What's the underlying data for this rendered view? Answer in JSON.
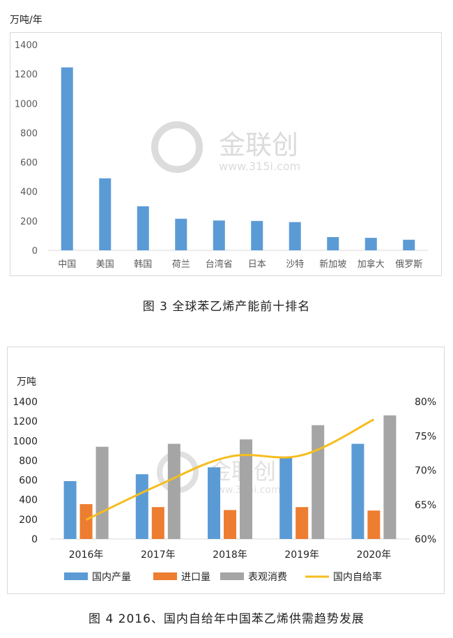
{
  "chart_data": [
    {
      "type": "bar",
      "unit_label": "万吨/年",
      "categories": [
        "中国",
        "美国",
        "韩国",
        "荷兰",
        "台湾省",
        "日本",
        "沙特",
        "新加坡",
        "加拿大",
        "俄罗斯"
      ],
      "values": [
        1245,
        490,
        300,
        215,
        203,
        200,
        192,
        90,
        85,
        72
      ],
      "ylim": [
        0,
        1400
      ],
      "yticks": [
        0,
        200,
        400,
        600,
        800,
        1000,
        1200,
        1400
      ],
      "color": "#5b9bd5",
      "grid": false,
      "caption": "图 3  全球苯乙烯产能前十排名"
    },
    {
      "type": "bar+line",
      "unit_label": "万吨",
      "categories": [
        "2016年",
        "2017年",
        "2018年",
        "2019年",
        "2020年"
      ],
      "series": [
        {
          "name": "国内产量",
          "type": "bar",
          "color": "#5b9bd5",
          "values": [
            590,
            660,
            730,
            840,
            970
          ]
        },
        {
          "name": "进口量",
          "type": "bar",
          "color": "#ed7d31",
          "values": [
            355,
            325,
            295,
            325,
            290
          ]
        },
        {
          "name": "表观消费",
          "type": "bar",
          "color": "#a5a5a5",
          "values": [
            940,
            970,
            1015,
            1160,
            1260
          ]
        },
        {
          "name": "国内自给率",
          "type": "line",
          "axis": "right",
          "color": "#f5bd1f",
          "values": [
            62.8,
            67.8,
            72.0,
            72.2,
            77.4
          ]
        }
      ],
      "ylim": [
        0,
        1400
      ],
      "yticks": [
        0,
        200,
        400,
        600,
        800,
        1000,
        1200,
        1400
      ],
      "y2lim": [
        60,
        80
      ],
      "y2ticks": [
        "60%",
        "65%",
        "70%",
        "75%",
        "80%"
      ],
      "legend_position": "bottom",
      "caption": "图 4  2016、国内自给年中国苯乙烯供需趋势发展"
    }
  ],
  "watermark": {
    "brand": "金联创",
    "url": "www.315i.com"
  }
}
